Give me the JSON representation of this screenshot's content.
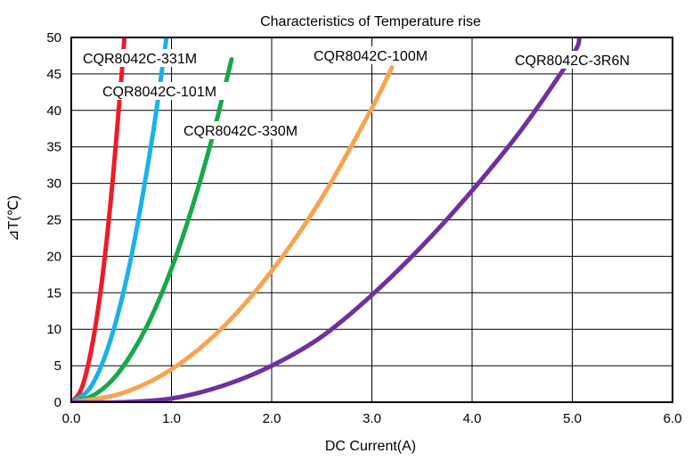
{
  "chart_data": {
    "type": "line",
    "title": "Characteristics of Temperature rise",
    "xlabel": "DC Current(A)",
    "ylabel": "⊿T(℃)",
    "xlim": [
      0,
      6
    ],
    "ylim": [
      0,
      50
    ],
    "x_ticks": [
      0,
      1,
      2,
      3,
      4,
      5,
      6
    ],
    "x_tick_labels": [
      "0.0",
      "1.0",
      "2.0",
      "3.0",
      "4.0",
      "5.0",
      "6.0"
    ],
    "y_ticks": [
      0,
      5,
      10,
      15,
      20,
      25,
      30,
      35,
      40,
      45,
      50
    ],
    "y_tick_labels": [
      "0",
      "5",
      "10",
      "15",
      "20",
      "25",
      "30",
      "35",
      "40",
      "45",
      "50"
    ],
    "grid": true,
    "series": [
      {
        "name": "CQR8042C-331M",
        "color": "#ee1c25",
        "x": [
          0.0,
          0.1,
          0.2,
          0.3,
          0.4,
          0.5,
          0.53
        ],
        "y": [
          0.0,
          1.8,
          7.2,
          16.0,
          28.5,
          44.5,
          50.0
        ]
      },
      {
        "name": "CQR8042C-101M",
        "color": "#1ab1ea",
        "x": [
          0.0,
          0.2,
          0.4,
          0.6,
          0.8,
          0.9,
          0.95
        ],
        "y": [
          0.0,
          2.2,
          8.9,
          20.0,
          35.5,
          45.0,
          50.0
        ]
      },
      {
        "name": "CQR8042C-330M",
        "color": "#18a84a",
        "x": [
          0.0,
          0.2,
          0.4,
          0.6,
          0.8,
          1.0,
          1.2,
          1.4,
          1.6
        ],
        "y": [
          0.0,
          0.8,
          2.9,
          6.6,
          11.7,
          18.3,
          26.4,
          35.9,
          47.0
        ]
      },
      {
        "name": "CQR8042C-100M",
        "color": "#f7a450",
        "x": [
          0.0,
          0.5,
          1.0,
          1.5,
          2.0,
          2.5,
          3.0,
          3.2
        ],
        "y": [
          0.0,
          1.2,
          4.5,
          10.1,
          18.0,
          28.0,
          40.3,
          45.9
        ]
      },
      {
        "name": "CQR8042C-3R6N",
        "color": "#7030a0",
        "x": [
          0.0,
          0.5,
          1.0,
          1.5,
          2.0,
          2.5,
          3.0,
          3.5,
          4.0,
          4.5,
          5.0,
          5.07
        ],
        "y": [
          0.0,
          0.0,
          0.5,
          2.2,
          5.0,
          9.0,
          14.7,
          21.4,
          29.0,
          37.5,
          47.5,
          50.0
        ]
      }
    ]
  }
}
